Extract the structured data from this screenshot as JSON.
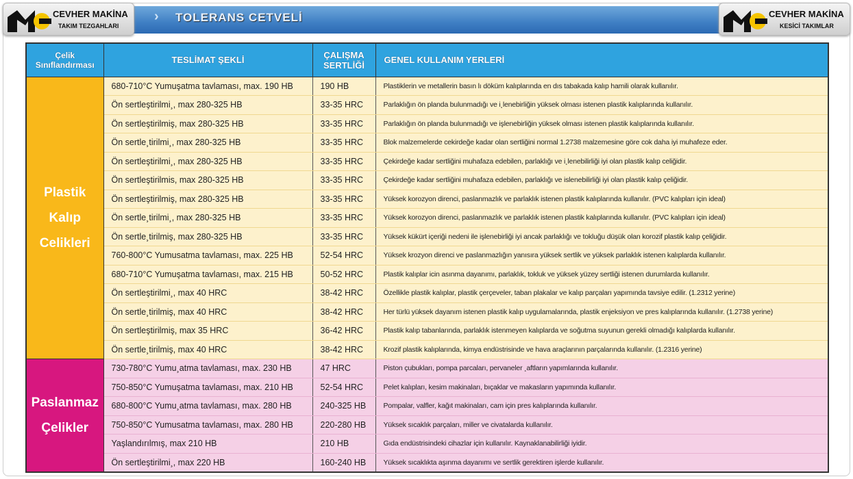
{
  "header": {
    "title": "TOLERANS CETVELİ",
    "logo_left": {
      "name": "CEVHER MAKİNA",
      "sub": "TAKIM TEZGAHLARI"
    },
    "logo_right": {
      "name": "CEVHER MAKİNA",
      "sub": "KESİCİ TAKIMLAR"
    }
  },
  "table": {
    "columns": [
      "Çelik Sınıflandırması",
      "TESLİMAT ŞEKLİ",
      "ÇALIŞMA SERTLİĞİ",
      "GENEL KULLANIM YERLERİ"
    ],
    "groups": [
      {
        "name": "Plastik Kalıp Celikleri",
        "color": "#f9b81a",
        "rows": [
          [
            "680-710°C Yumuşatma tavlaması, max. 190 HB",
            "190 HB",
            "Plastiklerin ve metallerin basın lı döküm kalıplarında en dıs tabakada kalıp hamili olarak kullanılır."
          ],
          [
            "Ön sertleştirilmi¸, max 280-325 HB",
            "33-35 HRC",
            "Parlaklığın ön planda bulunmadığı ve i¸lenebirliğin yüksek olması istenen plastik kalıplarında kullanılır."
          ],
          [
            "Ön sertleştirilmiş, max 280-325 HB",
            "33-35 HRC",
            "Parlaklığın ön planda bulunmadığı ve işlenebirliğin yüksek olması istenen plastik kalıplarında kullanılır."
          ],
          [
            "Ön sertle¸tirilmi¸, max 280-325 HB",
            "33-35 HRC",
            "Blok malzemelerde cekirdeğe kadar olan sertliğini normal 1.2738 malzemesine göre cok daha iyi muhafeze eder."
          ],
          [
            "Ön sertleştirilmi¸, max 280-325 HB",
            "33-35 HRC",
            "Çekirdeğe kadar sertliğini muhafaza edebilen, parlaklığı ve i¸lenebilirliği iyi olan plastik kalıp celiğidir."
          ],
          [
            "Ön sertleştirilmis, max 280-325 HB",
            "33-35 HRC",
            "Çekirdeğe kadar sertliğini muhafaza edebilen, parlaklığı ve islenebilirliği iyi olan plastik kalıp çeliğidir."
          ],
          [
            "Ön sertleştirilmiş, max 280-325 HB",
            "33-35 HRC",
            "Yüksek korozyon direnci, paslanmazlık ve parlaklık istenen plastik kalıplarında kullanılır. (PVC kalıpları için ideal)"
          ],
          [
            "Ön sertle¸tirilmi¸, max 280-325 HB",
            "33-35 HRC",
            "Yüksek korozyon direnci, paslanmazlık ve parlaklık istenen plastik kalıplarında kullanılır. (PVC kalıpları için ideal)"
          ],
          [
            "Ön sertle¸tirilmiş, max 280-325 HB",
            "33-35 HRC",
            "Yüksek kükürt içeriği nedeni ile işlenebirliği iyi ancak parlaklığı ve tokluğu düşük olan korozif plastik kalıp çeliğidir."
          ],
          [
            "760-800°C Yumusatma tavlaması, max. 225 HB",
            "52-54 HRC",
            "Yüksek krozyon direnci ve paslanmazlığın yanısıra yüksek sertlik ve yüksek parlaklık istenen kalıplarda kullanılır."
          ],
          [
            "680-710°C Yumuşatma tavlaması, max. 215 HB",
            "50-52 HRC",
            "Plastik kalıplar icin asınma dayanımı, parlaklık, tokluk ve yüksek yüzey sertliği istenen durumlarda kullanılır."
          ],
          [
            "Ön sertleştirilmi¸, max 40 HRC",
            "38-42 HRC",
            "Özellikle plastik kalıplar, plastik çerçeveler, taban plakalar ve kalıp parçaları yapımında tavsiye edilir. (1.2312 yerine)"
          ],
          [
            "Ön sertle¸tirilmiş, max 40 HRC",
            "38-42 HRC",
            "Her türlü yüksek dayanım istenen plastik kalıp uygulamalarında, plastik enjeksiyon ve pres kalıplarında kullanılır. (1.2738 yerine)"
          ],
          [
            "Ön sertleştirilmiş, max 35 HRC",
            "36-42 HRC",
            "Plastik kalıp tabanlarında, parlaklık istenmeyen kalıplarda ve soğutma suyunun gerekli olmadığı kalıplarda kullanılır."
          ],
          [
            "Ön sertle¸tirilmiş, max 40 HRC",
            "38-42 HRC",
            "Krozif plastik kalıplarında, kimya endüstrisinde ve hava araçlarının parçalarında kullanılır. (1.2316  yerine)"
          ]
        ]
      },
      {
        "name": "Paslanmaz Çelikler",
        "color": "#d7177f",
        "rows": [
          [
            "730-780°C Yumu¸atma tavlaması, max. 230 HB",
            "47 HRC",
            "Piston çubukları, pompa parcaları, pervaneler ¸aftların yapımlarında kullanılır."
          ],
          [
            "750-850°C Yumuşatma tavlaması, max. 210 HB",
            "52-54 HRC",
            "Pelet kalıpları, kesim makinaları, bıçaklar ve makasların yapımında kullanılır."
          ],
          [
            "680-800°C Yumu¸atma tavlaması, max. 280 HB",
            "240-325 HB",
            "Pompalar, valfler, kağıt makinaları, cam için pres kalıplarında kullanılır."
          ],
          [
            "750-850°C Yumusatma tavlaması, max. 280 HB",
            "220-280 HB",
            "Yüksek sıcaklık parçaları, miller ve civatalarda kullanılır."
          ],
          [
            "Yaşlandırılmış, max 210 HB",
            "210 HB",
            "Gıda endüstrisindeki cihazlar için kullanılır. Kaynaklanabilirliği iyidir."
          ],
          [
            "Ön sertleştirilmi¸, max 220 HB",
            "160-240 HB",
            "Yüksek sıcaklıkta aşınma dayanımı ve sertlik gerektiren işlerde kullanılır."
          ]
        ]
      }
    ]
  }
}
